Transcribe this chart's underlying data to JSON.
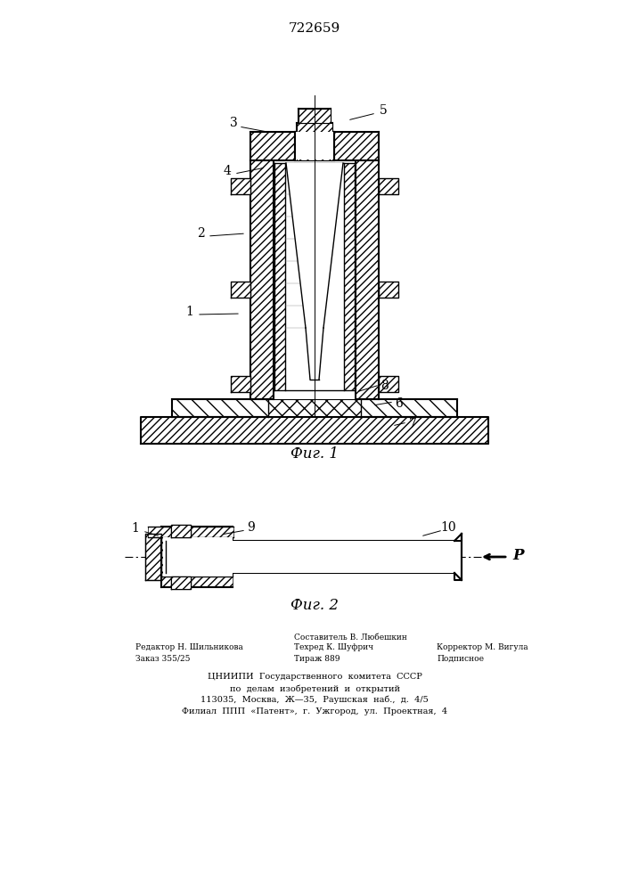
{
  "patent_number": "722659",
  "fig1_caption": "Фиг. 1",
  "fig2_caption": "Фиг. 2",
  "line_color": "#000000",
  "footer_center": [
    "ЦНИИПИ  Государственного  комитета  СССР",
    "по  делам  изобретений  и  открытий",
    "113035,  Москва,  Ж—35,  Раушская  наб.,  д.  4/5",
    "Филиал  ППП  «Патент»,  г.  Ужгород,  ул.  Проектная,  4"
  ]
}
